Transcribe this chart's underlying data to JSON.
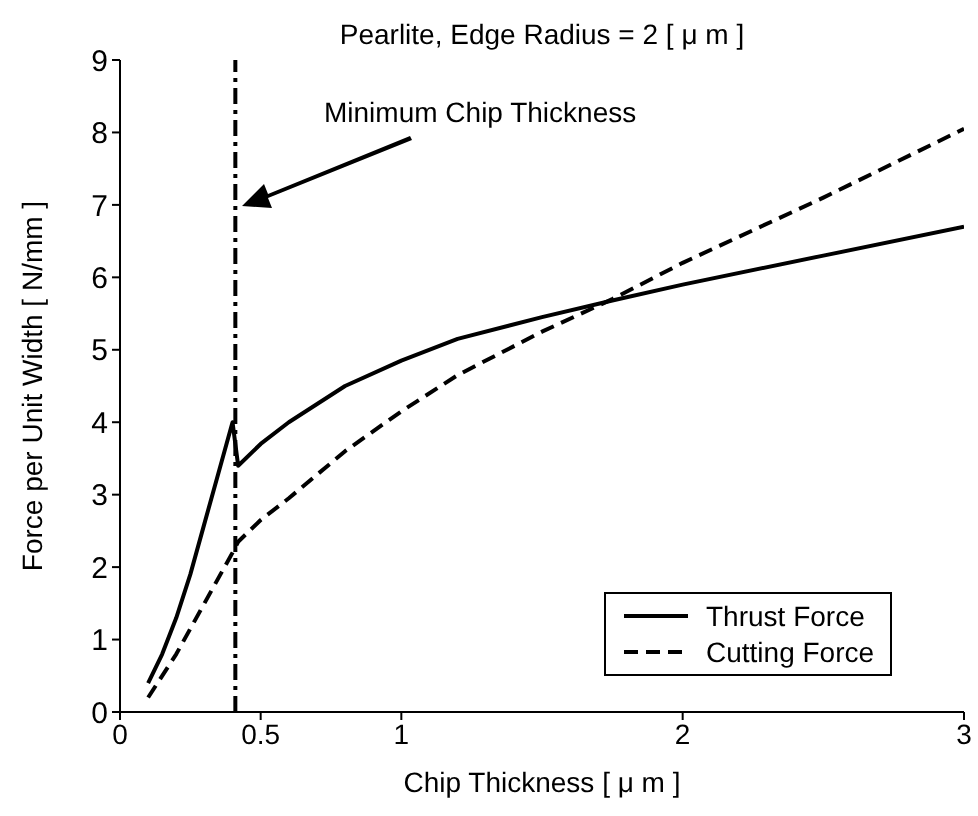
{
  "chart_data": {
    "type": "line",
    "title": "Pearlite, Edge Radius = 2 [ μ m ]",
    "xlabel": "Chip Thickness [ μ m ]",
    "ylabel": "Force per Unit Width [ N/mm ]",
    "xlim": [
      0,
      3
    ],
    "xticks": [
      0,
      0.5,
      1,
      2,
      3
    ],
    "ylim": [
      0,
      9
    ],
    "yticks": [
      0,
      1,
      2,
      3,
      4,
      5,
      6,
      7,
      8,
      9
    ],
    "grid": false,
    "legend": "bottom right",
    "marker": "none",
    "series": [
      {
        "name": "Thrust Force",
        "color": "#000000",
        "line_style": "solid",
        "x": [
          0.1,
          0.15,
          0.2,
          0.25,
          0.3,
          0.35,
          0.4,
          0.42,
          0.5,
          0.6,
          0.8,
          1.0,
          1.2,
          1.5,
          1.75,
          2.0,
          2.5,
          3.0
        ],
        "values": [
          0.4,
          0.8,
          1.3,
          1.9,
          2.6,
          3.3,
          4.0,
          3.4,
          3.7,
          4.0,
          4.5,
          4.85,
          5.15,
          5.45,
          5.68,
          5.9,
          6.3,
          6.7
        ]
      },
      {
        "name": "Cutting Force",
        "color": "#000000",
        "line_style": "dashed",
        "x": [
          0.1,
          0.2,
          0.3,
          0.4,
          0.42,
          0.5,
          0.6,
          0.8,
          1.0,
          1.2,
          1.5,
          1.75,
          2.0,
          2.5,
          3.0
        ],
        "values": [
          0.2,
          0.8,
          1.5,
          2.2,
          2.35,
          2.65,
          2.95,
          3.6,
          4.15,
          4.65,
          5.25,
          5.7,
          6.2,
          7.1,
          8.05
        ]
      }
    ],
    "ref_lines": [
      {
        "axis": "x",
        "value": 0.41,
        "color": "#000000",
        "line_style": "dashdot"
      }
    ],
    "annotations": [
      "Minimum Chip Thickness"
    ]
  }
}
